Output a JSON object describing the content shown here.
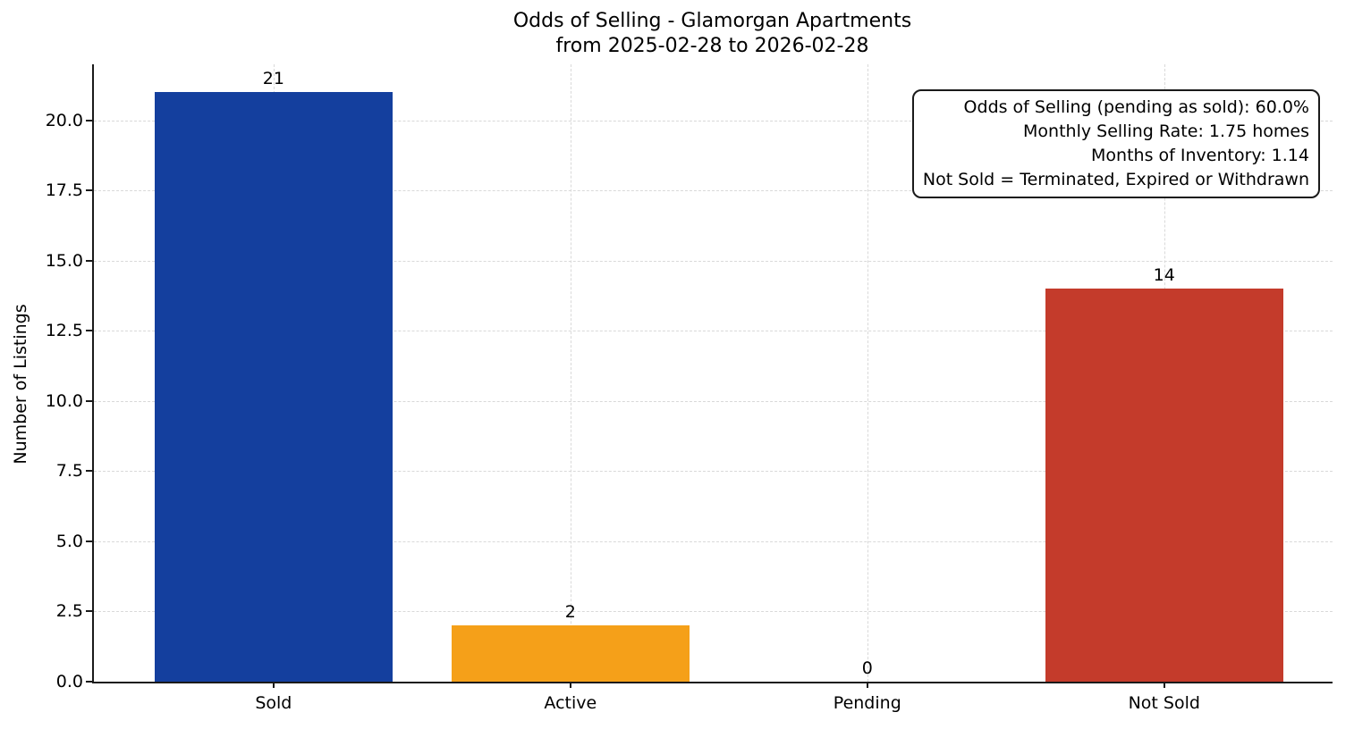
{
  "title": {
    "line1": "Odds of Selling - Glamorgan Apartments",
    "line2": "from 2025-02-28 to 2026-02-28"
  },
  "annotation_box": {
    "lines": [
      "Odds of Selling (pending as sold): 60.0%",
      "Monthly Selling Rate: 1.75 homes",
      "Months of Inventory: 1.14",
      "Not Sold = Terminated, Expired or Withdrawn"
    ]
  },
  "chart_data": {
    "type": "bar",
    "title": "Odds of Selling - Glamorgan Apartments",
    "subtitle": "from 2025-02-28 to 2026-02-28",
    "categories": [
      "Sold",
      "Active",
      "Pending",
      "Not Sold"
    ],
    "values": [
      21,
      2,
      0,
      14
    ],
    "bar_value_labels": [
      "21",
      "2",
      "0",
      "14"
    ],
    "bar_colors": [
      "#143f9e",
      "#f5a019",
      null,
      "#c43b2b"
    ],
    "xlabel": "",
    "ylabel": "Number of Listings",
    "ylim": [
      0,
      22
    ],
    "yticks": [
      0.0,
      2.5,
      5.0,
      7.5,
      10.0,
      12.5,
      15.0,
      17.5,
      20.0
    ],
    "ytick_labels": [
      "0.0",
      "2.5",
      "5.0",
      "7.5",
      "10.0",
      "12.5",
      "15.0",
      "17.5",
      "20.0"
    ],
    "grid": "dashed-both-axes",
    "legend": "none",
    "annotation_lines": [
      "Odds of Selling (pending as sold): 60.0%",
      "Monthly Selling Rate: 1.75 homes",
      "Months of Inventory: 1.14",
      "Not Sold = Terminated, Expired or Withdrawn"
    ],
    "colors": {
      "sold_bar": "#143f9e",
      "active_bar": "#f5a019",
      "not_sold_bar": "#c43b2b",
      "axis": "#1a1a1a",
      "grid": "#d9d9d9",
      "background": "#ffffff"
    }
  }
}
